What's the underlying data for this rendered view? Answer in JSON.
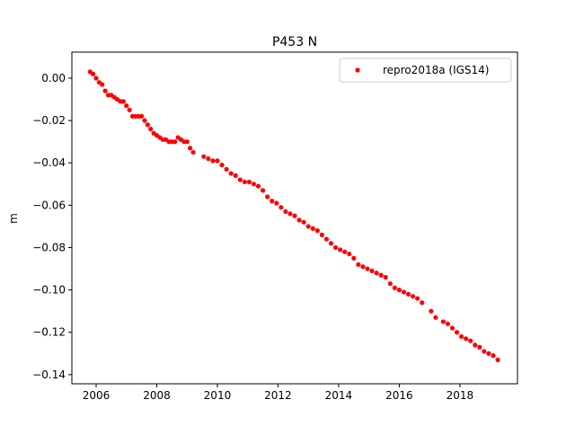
{
  "chart_data": {
    "type": "scatter",
    "title": "P453 N",
    "xlabel": "",
    "ylabel": "m",
    "xlim": [
      2005.2,
      2019.9
    ],
    "ylim": [
      -0.1443,
      0.0123
    ],
    "x_ticks": [
      2006,
      2008,
      2010,
      2012,
      2014,
      2016,
      2018
    ],
    "x_tick_labels": [
      "2006",
      "2008",
      "2010",
      "2012",
      "2014",
      "2016",
      "2018"
    ],
    "y_ticks": [
      0.0,
      -0.02,
      -0.04,
      -0.06,
      -0.08,
      -0.1,
      -0.12,
      -0.14
    ],
    "y_tick_labels": [
      "0.00",
      "−0.02",
      "−0.04",
      "−0.06",
      "−0.08",
      "−0.10",
      "−0.12",
      "−0.14"
    ],
    "grid": false,
    "legend_position": "top-right",
    "series": [
      {
        "name": "repro2018a (IGS14)",
        "color": "#ff0000",
        "marker": "dot",
        "x": [
          2005.8,
          2005.9,
          2006.0,
          2006.1,
          2006.2,
          2006.3,
          2006.4,
          2006.5,
          2006.6,
          2006.7,
          2006.8,
          2006.9,
          2007.0,
          2007.1,
          2007.2,
          2007.3,
          2007.4,
          2007.5,
          2007.6,
          2007.7,
          2007.8,
          2007.9,
          2008.0,
          2008.1,
          2008.2,
          2008.3,
          2008.4,
          2008.5,
          2008.6,
          2008.7,
          2008.8,
          2008.9,
          2009.0,
          2009.1,
          2009.2,
          2009.55,
          2009.7,
          2009.85,
          2010.0,
          2010.15,
          2010.3,
          2010.45,
          2010.6,
          2010.75,
          2010.9,
          2011.05,
          2011.2,
          2011.35,
          2011.5,
          2011.65,
          2011.8,
          2011.95,
          2012.1,
          2012.25,
          2012.4,
          2012.55,
          2012.7,
          2012.85,
          2013.0,
          2013.15,
          2013.3,
          2013.45,
          2013.6,
          2013.75,
          2013.9,
          2014.05,
          2014.2,
          2014.35,
          2014.5,
          2014.65,
          2014.8,
          2014.95,
          2015.1,
          2015.25,
          2015.4,
          2015.55,
          2015.7,
          2015.85,
          2016.0,
          2016.15,
          2016.3,
          2016.45,
          2016.6,
          2016.75,
          2017.05,
          2017.2,
          2017.45,
          2017.6,
          2017.75,
          2017.9,
          2018.05,
          2018.2,
          2018.35,
          2018.5,
          2018.65,
          2018.8,
          2018.95,
          2019.1,
          2019.25
        ],
        "y": [
          0.003,
          0.002,
          0.0,
          -0.002,
          -0.003,
          -0.006,
          -0.008,
          -0.008,
          -0.009,
          -0.01,
          -0.011,
          -0.011,
          -0.013,
          -0.015,
          -0.018,
          -0.018,
          -0.018,
          -0.018,
          -0.02,
          -0.022,
          -0.024,
          -0.026,
          -0.027,
          -0.028,
          -0.029,
          -0.029,
          -0.03,
          -0.03,
          -0.03,
          -0.028,
          -0.029,
          -0.03,
          -0.03,
          -0.033,
          -0.035,
          -0.037,
          -0.038,
          -0.039,
          -0.039,
          -0.041,
          -0.043,
          -0.045,
          -0.046,
          -0.048,
          -0.049,
          -0.049,
          -0.05,
          -0.051,
          -0.053,
          -0.056,
          -0.058,
          -0.059,
          -0.061,
          -0.063,
          -0.064,
          -0.065,
          -0.067,
          -0.068,
          -0.07,
          -0.071,
          -0.072,
          -0.074,
          -0.076,
          -0.078,
          -0.08,
          -0.081,
          -0.082,
          -0.083,
          -0.085,
          -0.088,
          -0.089,
          -0.09,
          -0.091,
          -0.092,
          -0.093,
          -0.094,
          -0.097,
          -0.099,
          -0.1,
          -0.101,
          -0.102,
          -0.103,
          -0.104,
          -0.106,
          -0.11,
          -0.113,
          -0.115,
          -0.116,
          -0.118,
          -0.12,
          -0.122,
          -0.123,
          -0.124,
          -0.126,
          -0.127,
          -0.129,
          -0.13,
          -0.131,
          -0.133
        ]
      }
    ]
  }
}
